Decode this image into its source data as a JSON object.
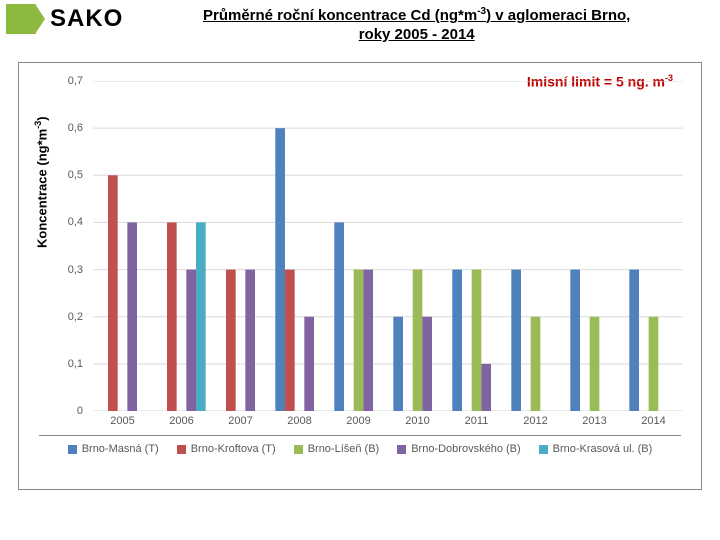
{
  "header": {
    "logo_text": "SAKO",
    "title_html": "Průměrné roční koncentrace Cd (ng*m<sup>-3</sup>) v aglomeraci Brno,<br>roky 2005 - 2014"
  },
  "chart": {
    "type": "bar",
    "ylabel_html": "Koncentrace (ng*m<sup>-3</sup>)",
    "limit_label_html": "Imisní limit = 5 ng. m<sup>-3</sup>",
    "ylim": [
      0,
      0.7
    ],
    "ytick_step": 0.1,
    "categories": [
      "2005",
      "2006",
      "2007",
      "2008",
      "2009",
      "2010",
      "2011",
      "2012",
      "2013",
      "2014"
    ],
    "series": [
      {
        "name": "Brno-Masná (T)",
        "color": "#4f81bd",
        "values": [
          null,
          null,
          null,
          0.6,
          0.4,
          0.2,
          0.3,
          0.3,
          0.3,
          0.3
        ]
      },
      {
        "name": "Brno-Kroftova (T)",
        "color": "#c0504d",
        "values": [
          0.5,
          0.4,
          0.3,
          0.3,
          null,
          null,
          null,
          null,
          null,
          null
        ]
      },
      {
        "name": "Brno-Líšeň (B)",
        "color": "#9bbb59",
        "values": [
          null,
          null,
          null,
          null,
          0.3,
          0.3,
          0.3,
          0.2,
          0.2,
          0.2
        ]
      },
      {
        "name": "Brno-Dobrovského (B)",
        "color": "#8064a2",
        "values": [
          0.4,
          0.3,
          0.3,
          0.2,
          0.3,
          0.2,
          0.1,
          null,
          null,
          null
        ]
      },
      {
        "name": "Brno-Krasová ul. (B)",
        "color": "#4bacc6",
        "values": [
          null,
          0.4,
          null,
          null,
          null,
          null,
          null,
          null,
          null,
          null
        ]
      }
    ],
    "background_color": "#ffffff",
    "grid_color": "#d9d9d9",
    "bar_gap_ratio": 0.18
  }
}
